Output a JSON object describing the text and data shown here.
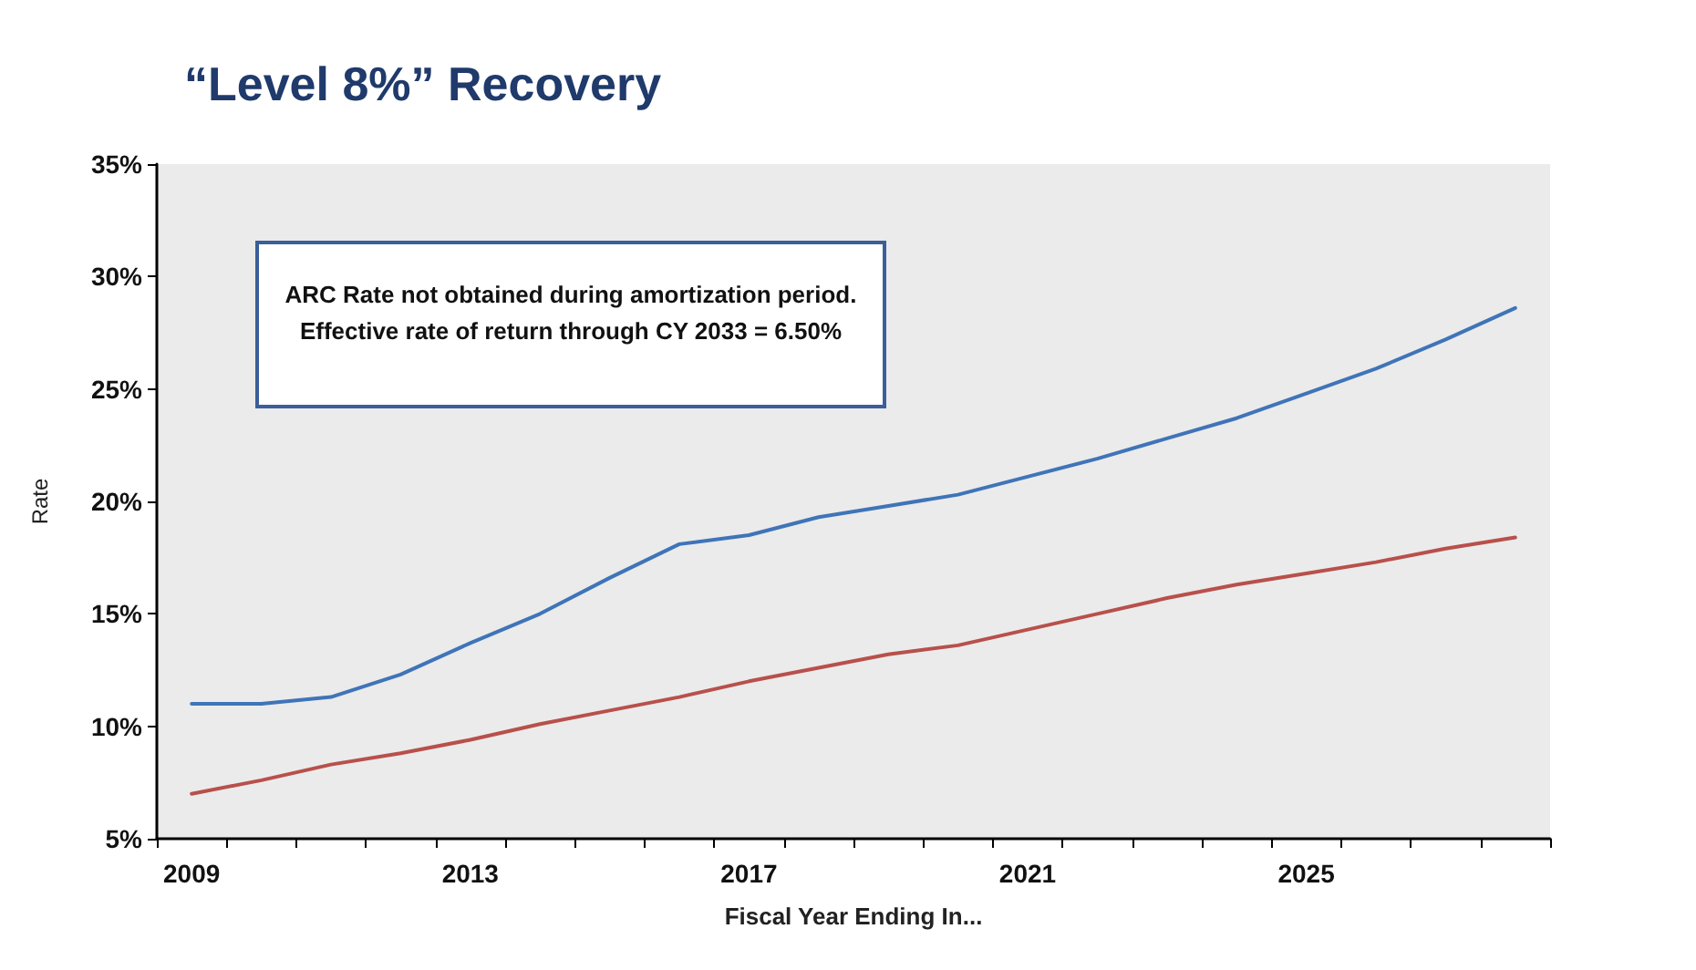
{
  "chart_data": {
    "type": "line",
    "title": "“Level 8%” Recovery",
    "xlabel": "Fiscal Year Ending In...",
    "ylabel": "Rate",
    "categories": [
      "2009",
      null,
      null,
      null,
      "2013",
      null,
      null,
      null,
      "2017",
      null,
      null,
      null,
      "2021",
      null,
      null,
      null,
      "2025",
      null,
      null,
      null
    ],
    "series": [
      {
        "color": "#3f74b8",
        "values": [
          11.0,
          11.0,
          11.3,
          12.3,
          13.7,
          15.0,
          16.6,
          18.1,
          18.5,
          19.3,
          19.8,
          20.3,
          21.1,
          21.9,
          22.8,
          23.7,
          24.8,
          25.9,
          27.2,
          28.6
        ]
      },
      {
        "color": "#b8504b",
        "values": [
          7.0,
          7.6,
          8.3,
          8.8,
          9.4,
          10.1,
          10.7,
          11.3,
          12.0,
          12.6,
          13.2,
          13.6,
          14.3,
          15.0,
          15.7,
          16.3,
          16.8,
          17.3,
          17.9,
          18.4
        ]
      }
    ],
    "ylim": [
      5,
      35
    ],
    "yticks": [
      {
        "value": 5,
        "label": "5%"
      },
      {
        "value": 10,
        "label": "10%"
      },
      {
        "value": 15,
        "label": "15%"
      },
      {
        "value": 20,
        "label": "20%"
      },
      {
        "value": 25,
        "label": "25%"
      },
      {
        "value": 30,
        "label": "30%"
      },
      {
        "value": 35,
        "label": "35%"
      }
    ],
    "annotations": [
      "ARC Rate not obtained during amortization period.\nEffective rate of return through CY 2033 = 6.50%"
    ],
    "grid": false,
    "marker": "none",
    "line_style": "solid"
  }
}
